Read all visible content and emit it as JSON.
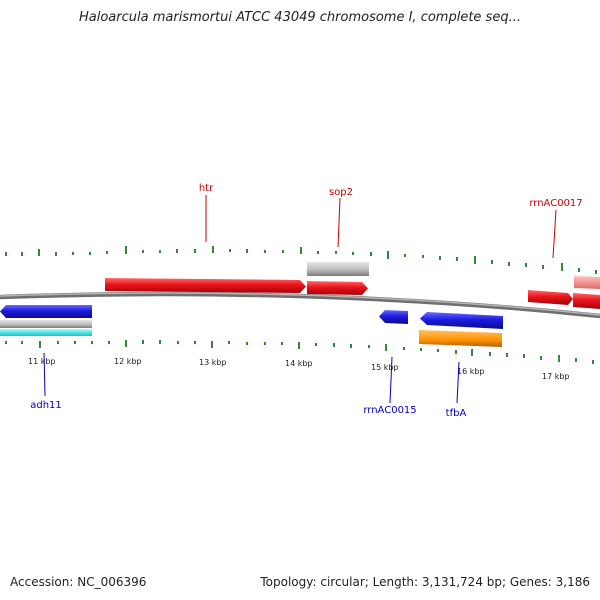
{
  "title": "Haloarcula marismortui ATCC 43049 chromosome I, complete seq...",
  "footer": {
    "accession": "Accession: NC_006396",
    "summary": "Topology: circular; Length: 3,131,724 bp; Genes: 3,186"
  },
  "colors": {
    "tick": "#2e8b2e",
    "backbone": "#8c8c8c",
    "forward_gene": "#e8141b",
    "forward_gene_light": "#f08080",
    "reverse_gene": "#1c1ce0",
    "rna": "#b8b8b8",
    "cyan": "#1ee0e0",
    "orange": "#ff9100",
    "label_forward": "#cc0000",
    "label_reverse": "#0000cc"
  },
  "scale": {
    "labels": [
      "11 kbp",
      "12 kbp",
      "13 kbp",
      "14 kbp",
      "15 kbp",
      "16 kbp",
      "17 kbp"
    ]
  },
  "gene_labels": {
    "forward": [
      "htr",
      "sop2",
      "rrnAC0017"
    ],
    "reverse": [
      "adh11",
      "rrnAC0015",
      "tfbA"
    ]
  }
}
